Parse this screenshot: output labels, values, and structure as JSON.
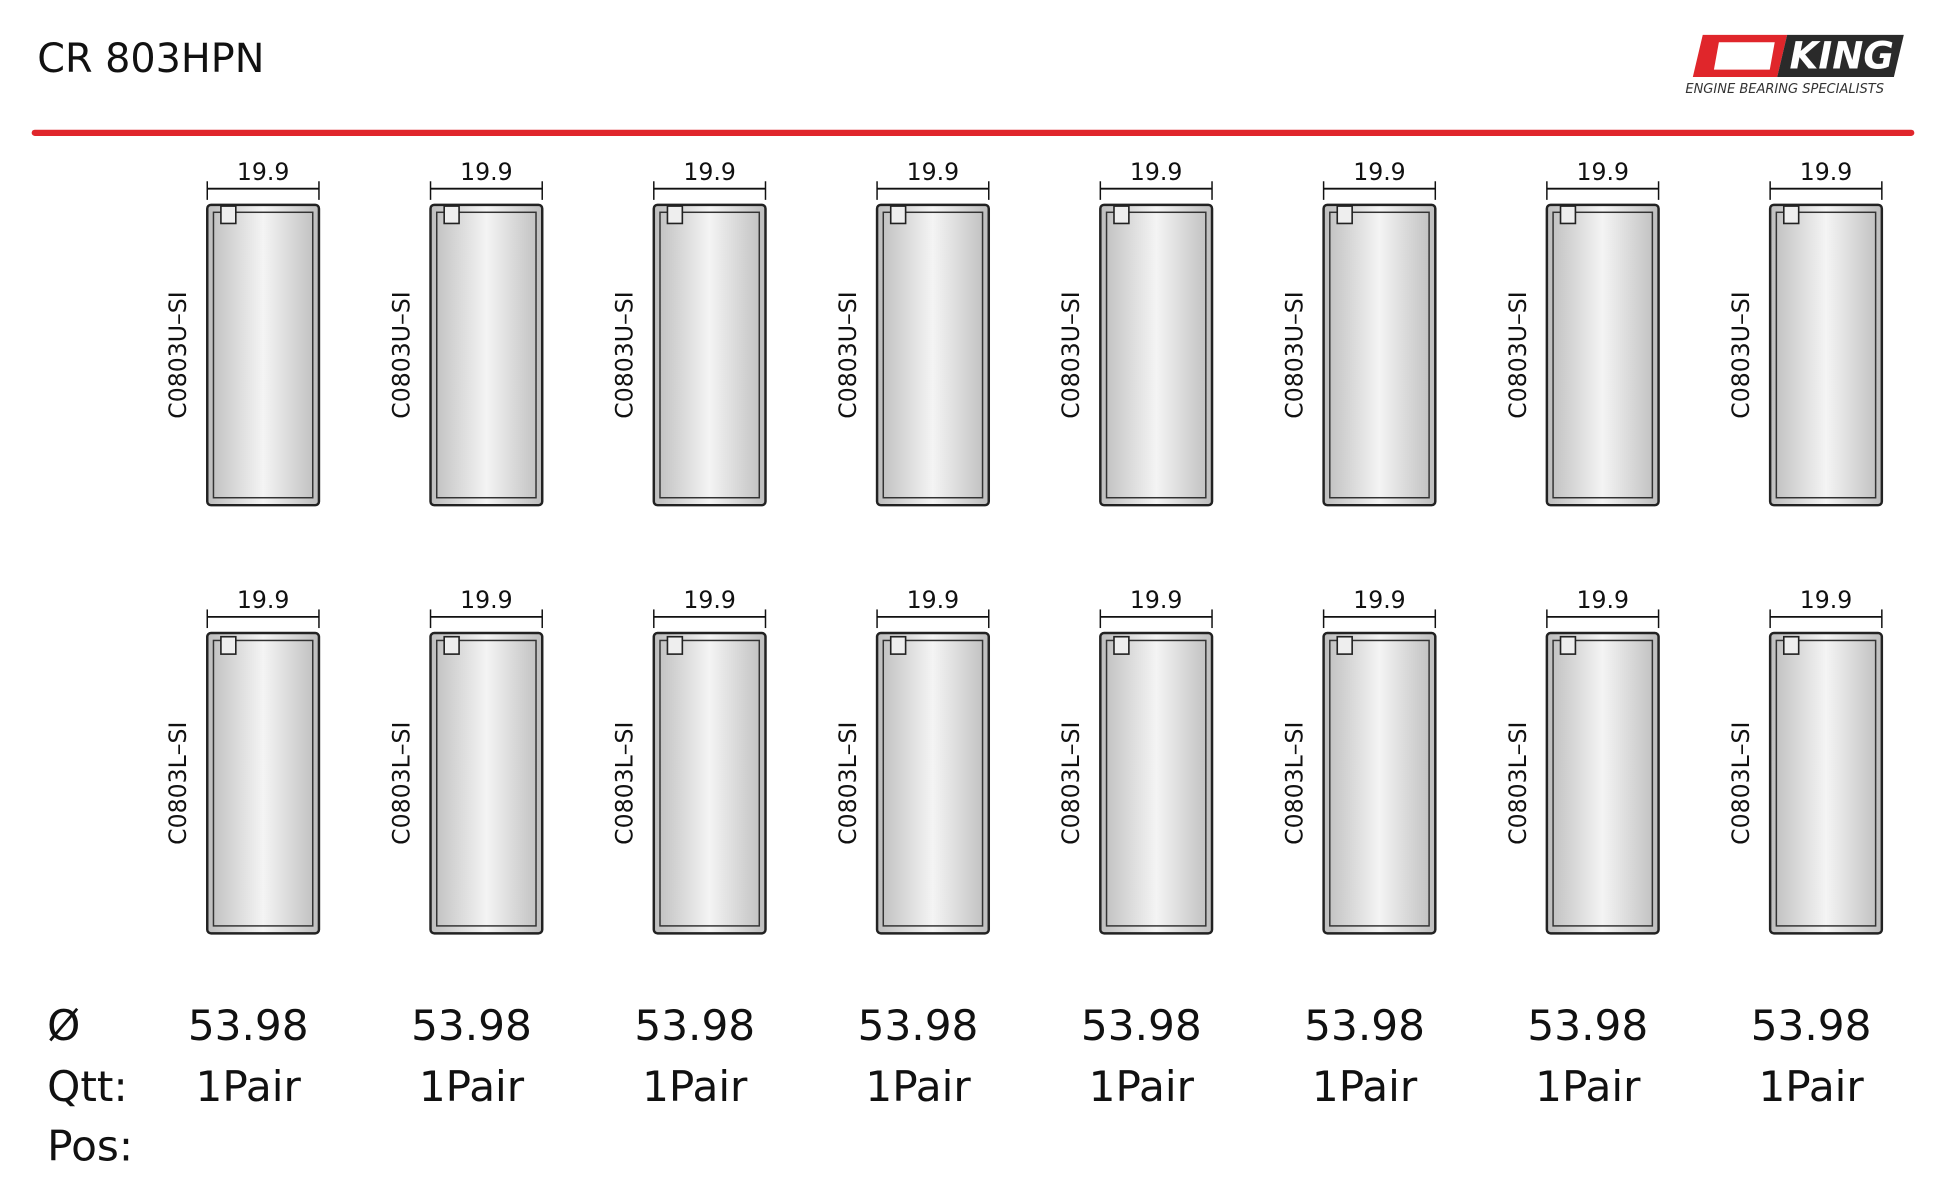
{
  "header": {
    "title": "CR 803HPN",
    "logo": {
      "brand": "KING",
      "tagline": "ENGINE BEARING SPECIALISTS"
    }
  },
  "upper": [
    {
      "width": 19.9,
      "part": "C0803U–SI"
    },
    {
      "width": 19.9,
      "part": "C0803U–SI"
    },
    {
      "width": 19.9,
      "part": "C0803U–SI"
    },
    {
      "width": 19.9,
      "part": "C0803U–SI"
    },
    {
      "width": 19.9,
      "part": "C0803U–SI"
    },
    {
      "width": 19.9,
      "part": "C0803U–SI"
    },
    {
      "width": 19.9,
      "part": "C0803U–SI"
    },
    {
      "width": 19.9,
      "part": "C0803U–SI"
    }
  ],
  "lower": [
    {
      "width": 19.9,
      "part": "C0803L–SI"
    },
    {
      "width": 19.9,
      "part": "C0803L–SI"
    },
    {
      "width": 19.9,
      "part": "C0803L–SI"
    },
    {
      "width": 19.9,
      "part": "C0803L–SI"
    },
    {
      "width": 19.9,
      "part": "C0803L–SI"
    },
    {
      "width": 19.9,
      "part": "C0803L–SI"
    },
    {
      "width": 19.9,
      "part": "C0803L–SI"
    },
    {
      "width": 19.9,
      "part": "C0803L–SI"
    }
  ],
  "summary": {
    "diameter_label": "Ø",
    "diameters": [
      53.98,
      53.98,
      53.98,
      53.98,
      53.98,
      53.98,
      53.98,
      53.98
    ],
    "quantity_label": "Qtt:",
    "quantities": [
      "1Pair",
      "1Pair",
      "1Pair",
      "1Pair",
      "1Pair",
      "1Pair",
      "1Pair",
      "1Pair"
    ],
    "position_label": "Pos:"
  }
}
